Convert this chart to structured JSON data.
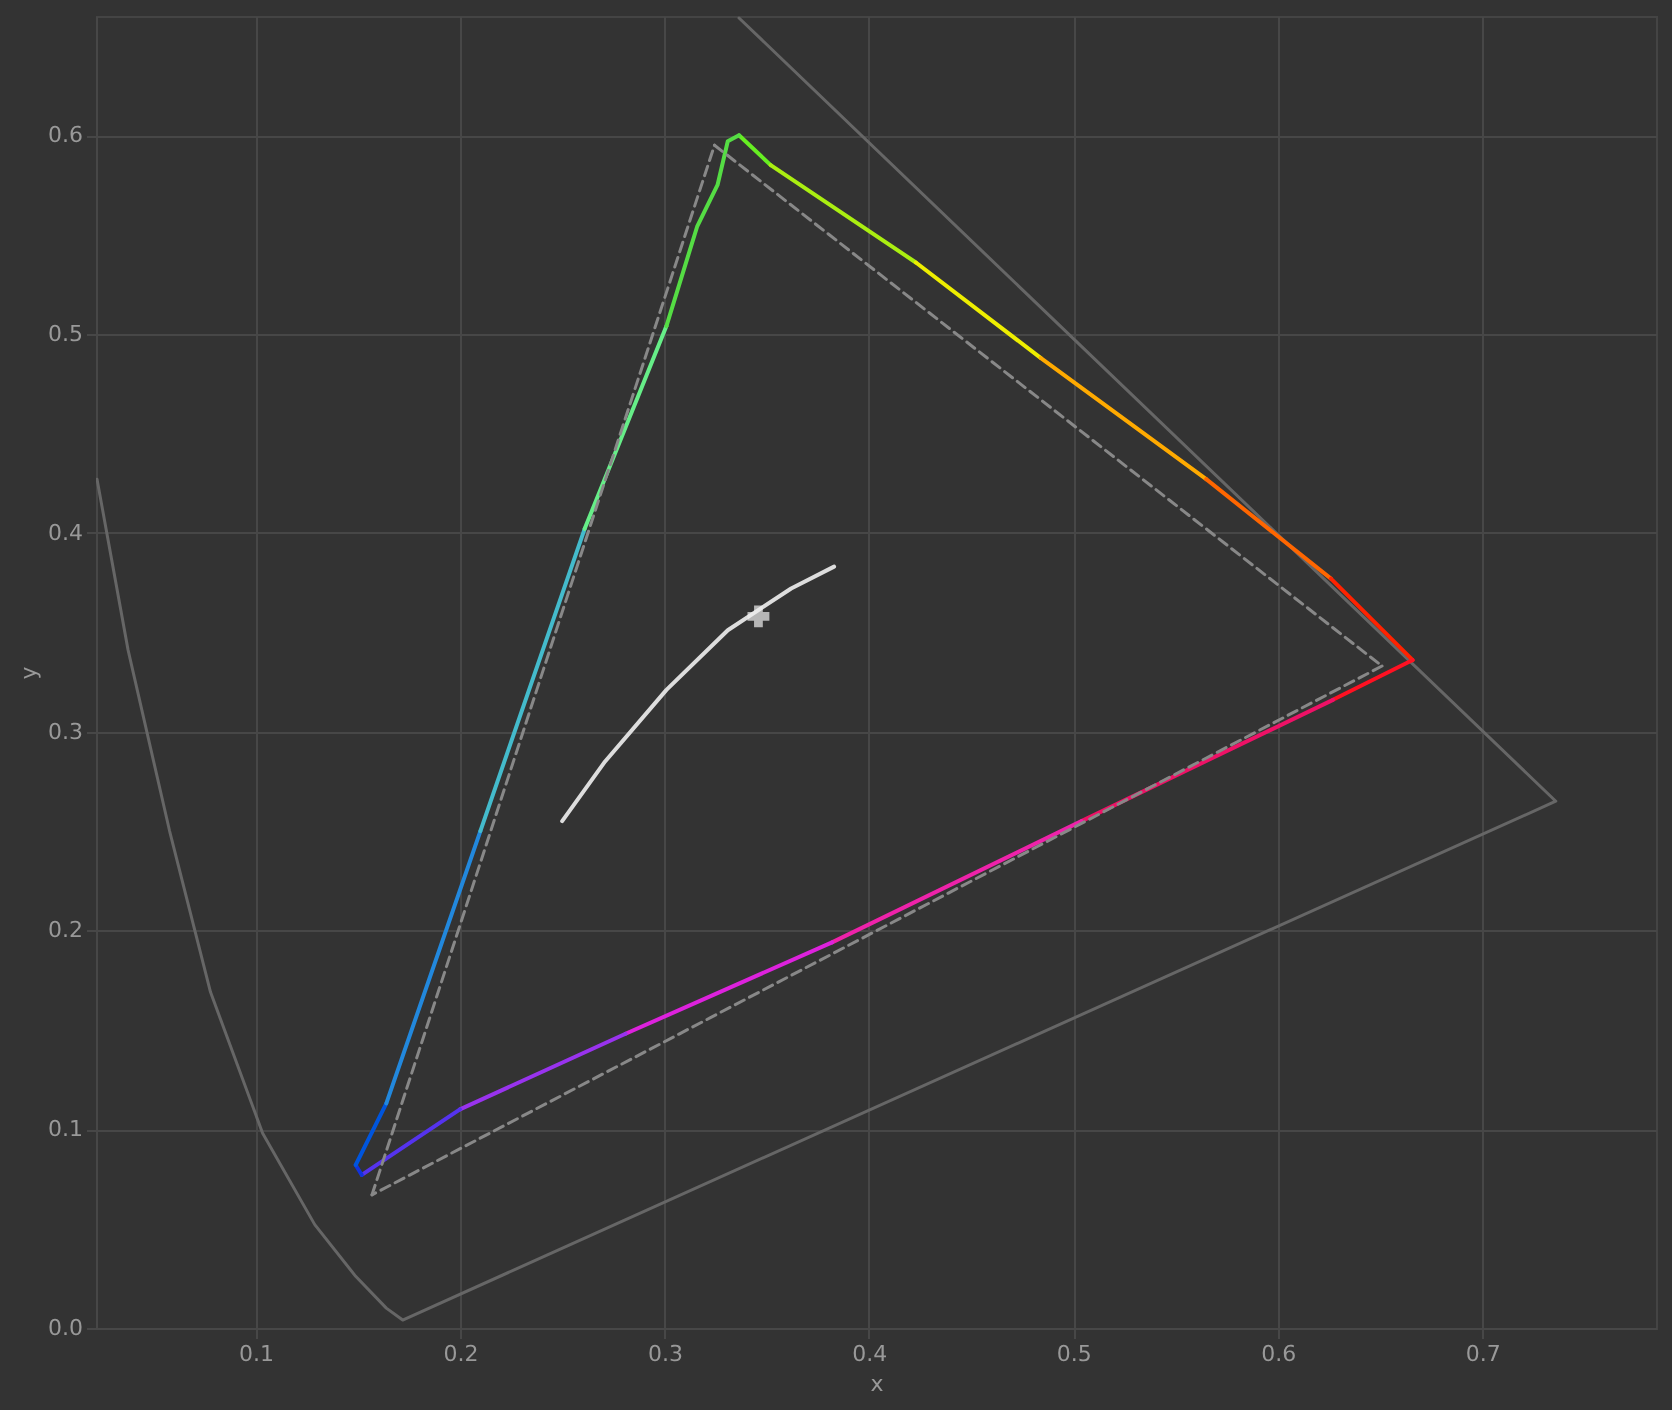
{
  "chart_data": {
    "type": "line",
    "xlabel": "x",
    "ylabel": "y",
    "xlim": [
      0.022,
      0.785
    ],
    "ylim": [
      0,
      0.66
    ],
    "xticks": [
      0.1,
      0.2,
      0.3,
      0.4,
      0.5,
      0.6,
      0.7
    ],
    "yticks": [
      {
        "value": 0,
        "label": "0.0"
      },
      0.1,
      0.2,
      0.3,
      0.4,
      0.5,
      0.6
    ],
    "grid": true,
    "marker": "none",
    "series": [
      {
        "color": "#666666",
        "line_style": "solid",
        "x": [
          0.0225,
          0.0377,
          0.058,
          0.078,
          0.1035,
          0.129,
          0.149,
          0.164,
          0.172,
          0.736,
          0.3365
        ],
        "values": [
          0.427,
          0.341,
          0.25,
          0.169,
          0.098,
          0.052,
          0.026,
          0.01,
          0.004,
          0.265,
          0.659
        ]
      },
      {
        "color": "#66ee22",
        "line_style": "solid",
        "x": [
          0.3365,
          0.352
        ],
        "values": [
          0.6,
          0.585
        ]
      },
      {
        "color": "#aaee11",
        "line_style": "solid",
        "x": [
          0.352,
          0.423
        ],
        "values": [
          0.585,
          0.536
        ]
      },
      {
        "color": "#eeee00",
        "line_style": "solid",
        "x": [
          0.423,
          0.484
        ],
        "values": [
          0.536,
          0.488
        ]
      },
      {
        "color": "#ffaa00",
        "line_style": "solid",
        "x": [
          0.484,
          0.565
        ],
        "values": [
          0.488,
          0.427
        ]
      },
      {
        "color": "#ff6600",
        "line_style": "solid",
        "x": [
          0.565,
          0.626
        ],
        "values": [
          0.427,
          0.377
        ]
      },
      {
        "color": "#ff2200",
        "line_style": "solid",
        "x": [
          0.626,
          0.666
        ],
        "values": [
          0.377,
          0.336
        ]
      },
      {
        "color": "#ff1122",
        "line_style": "solid",
        "x": [
          0.666,
          0.627
        ],
        "values": [
          0.336,
          0.316
        ]
      },
      {
        "color": "#ee1166",
        "line_style": "solid",
        "x": [
          0.627,
          0.504
        ],
        "values": [
          0.316,
          0.255
        ]
      },
      {
        "color": "#ee22aa",
        "line_style": "solid",
        "x": [
          0.504,
          0.382
        ],
        "values": [
          0.255,
          0.194
        ]
      },
      {
        "color": "#dd22dd",
        "line_style": "solid",
        "x": [
          0.382,
          0.281
        ],
        "values": [
          0.194,
          0.148
        ]
      },
      {
        "color": "#9933ee",
        "line_style": "solid",
        "x": [
          0.281,
          0.2
        ],
        "values": [
          0.148,
          0.11
        ]
      },
      {
        "color": "#5533ee",
        "line_style": "solid",
        "x": [
          0.2,
          0.152
        ],
        "values": [
          0.11,
          0.077
        ]
      },
      {
        "color": "#1133dd",
        "line_style": "solid",
        "x": [
          0.152,
          0.149
        ],
        "values": [
          0.077,
          0.082
        ]
      },
      {
        "color": "#0055dd",
        "line_style": "solid",
        "x": [
          0.149,
          0.164
        ],
        "values": [
          0.082,
          0.113
        ]
      },
      {
        "color": "#2288dd",
        "line_style": "solid",
        "x": [
          0.164,
          0.21
        ],
        "values": [
          0.113,
          0.25
        ]
      },
      {
        "color": "#44bbcc",
        "line_style": "solid",
        "x": [
          0.21,
          0.261
        ],
        "values": [
          0.25,
          0.402
        ]
      },
      {
        "color": "#66ee88",
        "line_style": "solid",
        "x": [
          0.261,
          0.301
        ],
        "values": [
          0.402,
          0.504
        ]
      },
      {
        "color": "#55dd44",
        "line_style": "solid",
        "x": [
          0.301,
          0.316,
          0.326,
          0.331,
          0.3365
        ],
        "values": [
          0.504,
          0.554,
          0.575,
          0.597,
          0.6
        ]
      },
      {
        "color": "#dddddd",
        "line_style": "solid",
        "x": [
          0.25,
          0.271,
          0.301,
          0.331,
          0.362,
          0.383
        ],
        "values": [
          0.255,
          0.285,
          0.321,
          0.351,
          0.372,
          0.383
        ]
      },
      {
        "color": "#888888",
        "line_style": "dashed",
        "x": [
          0.3245,
          0.651
        ],
        "values": [
          0.595,
          0.333
        ]
      },
      {
        "color": "#888888",
        "line_style": "dashed",
        "x": [
          0.651,
          0.157
        ],
        "values": [
          0.333,
          0.067
        ]
      },
      {
        "color": "#888888",
        "line_style": "dashed",
        "x": [
          0.157,
          0.3245
        ],
        "values": [
          0.067,
          0.595
        ]
      },
      {
        "type": "scatter",
        "marker": "cross",
        "color": "#eeeeee",
        "x": [
          0.346
        ],
        "values": [
          0.358
        ]
      }
    ]
  }
}
